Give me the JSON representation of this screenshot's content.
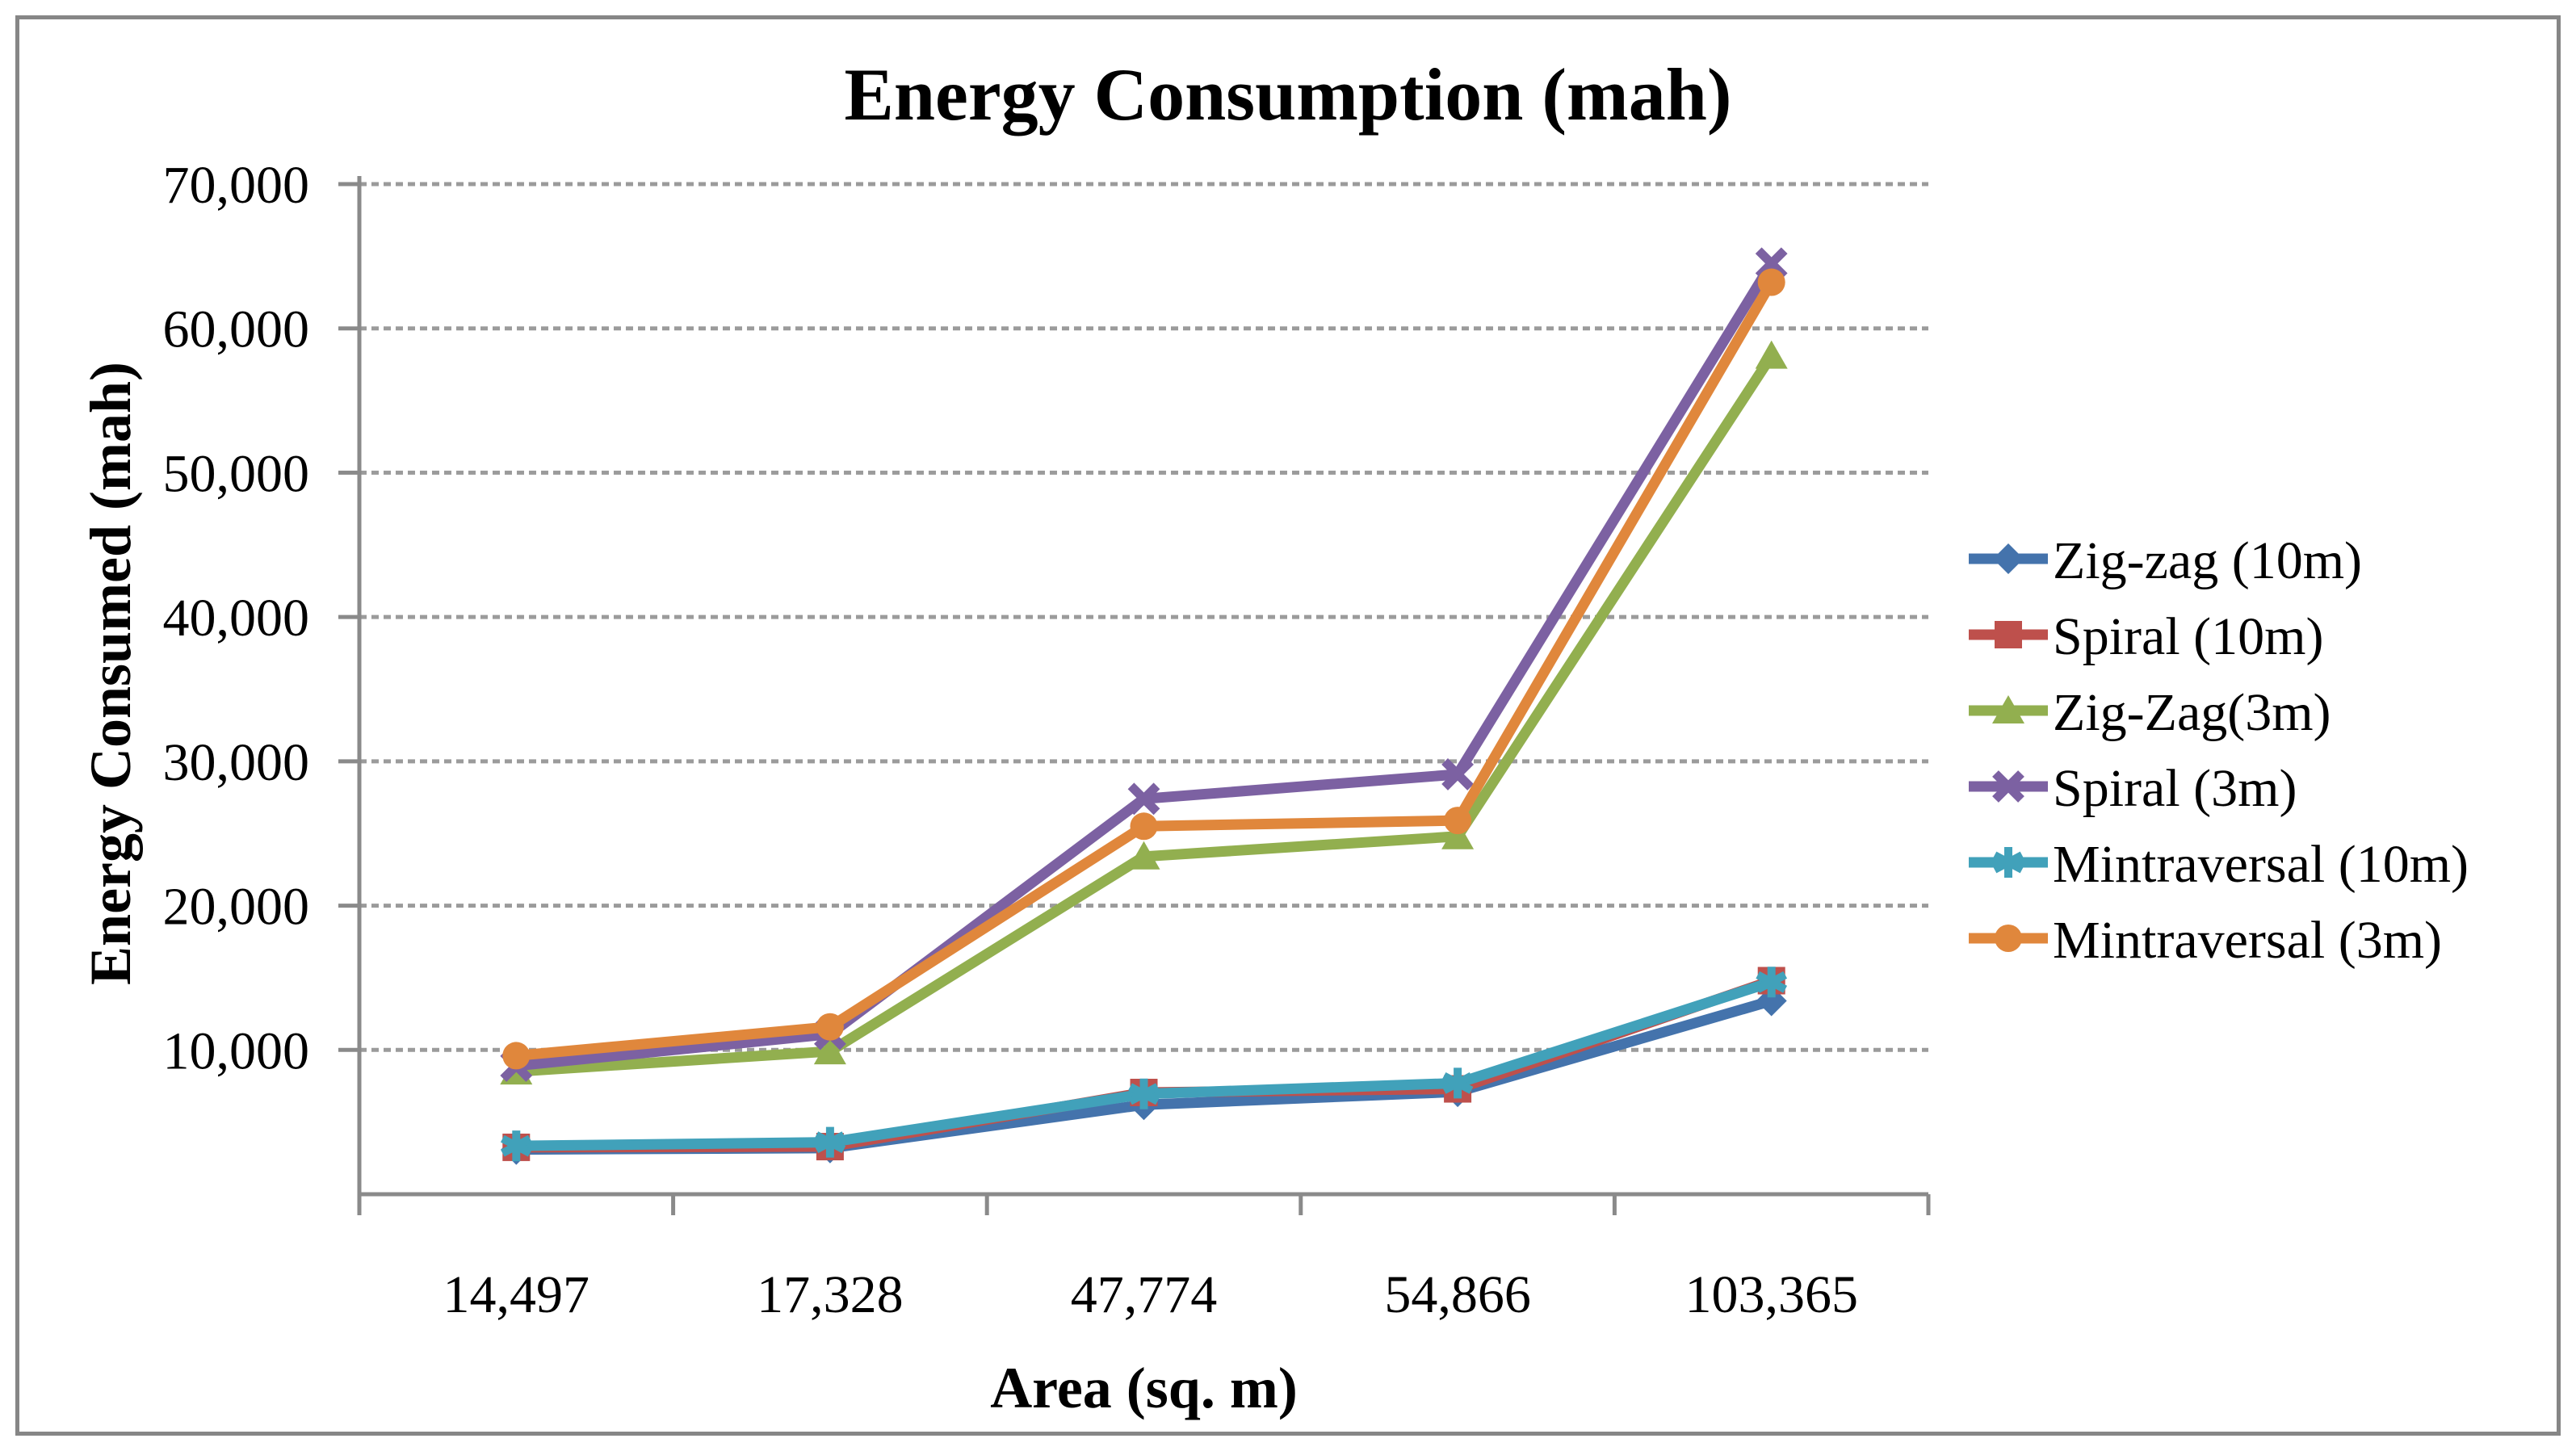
{
  "title": "Energy Consumption (mah)",
  "chart_data": {
    "type": "line",
    "title": "Energy Consumption (mah)",
    "xlabel": "Area (sq. m)",
    "ylabel": "Energy Consumed (mah)",
    "categories": [
      "14,497",
      "17,328",
      "47,774",
      "54,866",
      "103,365"
    ],
    "series": [
      {
        "name": "Zig-zag (10m)",
        "marker": "diamond",
        "color": "#4473AC",
        "values": [
          3100,
          3200,
          6200,
          7100,
          13400
        ]
      },
      {
        "name": "Spiral (10m)",
        "marker": "square",
        "color": "#BE504C",
        "values": [
          3250,
          3300,
          7050,
          7300,
          14800
        ]
      },
      {
        "name": "Zig-Zag(3m)",
        "marker": "triangle",
        "color": "#92AF4F",
        "values": [
          8500,
          9900,
          23400,
          24800,
          58100
        ]
      },
      {
        "name": "Spiral (3m)",
        "marker": "x",
        "color": "#7C61A2",
        "values": [
          8900,
          11100,
          27400,
          29100,
          64500
        ]
      },
      {
        "name": "Mintraversal (10m)",
        "marker": "asterisk",
        "color": "#41A1BA",
        "values": [
          3350,
          3600,
          6950,
          7700,
          14700
        ]
      },
      {
        "name": "Mintraversal (3m)",
        "marker": "circle",
        "color": "#E0873C",
        "values": [
          9600,
          11600,
          25500,
          25900,
          63200
        ]
      }
    ],
    "ylim": [
      0,
      70000
    ],
    "y_tick_step": 10000,
    "y_tick_labels": [
      "10,000",
      "20,000",
      "30,000",
      "40,000",
      "50,000",
      "60,000",
      "70,000"
    ],
    "grid": "horizontal-dotted",
    "legend_position": "right",
    "colors": {
      "axis": "#8A8A8A",
      "gridline": "#9B9B9B",
      "frame_border": "#868686",
      "text": "#000000"
    }
  }
}
